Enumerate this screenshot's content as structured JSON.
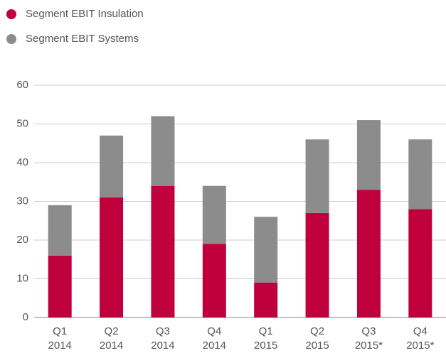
{
  "chart_data": {
    "type": "stacked_bar",
    "categories": [
      [
        "Q1",
        "2014"
      ],
      [
        "Q2",
        "2014"
      ],
      [
        "Q3",
        "2014"
      ],
      [
        "Q4",
        "2014"
      ],
      [
        "Q1",
        "2015"
      ],
      [
        "Q2",
        "2015"
      ],
      [
        "Q3",
        "2015*"
      ],
      [
        "Q4",
        "2015*"
      ]
    ],
    "series": [
      {
        "name": "Segment EBIT Insulation",
        "color": "#c0003c",
        "values": [
          16,
          31,
          34,
          19,
          9,
          27,
          33,
          28
        ]
      },
      {
        "name": "Segment EBIT Systems",
        "color": "#8c8c8c",
        "values": [
          13,
          16,
          18,
          15,
          17,
          19,
          18,
          18
        ]
      }
    ],
    "ylim": [
      0,
      60
    ],
    "yticks": [
      0,
      10,
      20,
      30,
      40,
      50,
      60
    ],
    "grid": true,
    "legend": "top-left"
  }
}
